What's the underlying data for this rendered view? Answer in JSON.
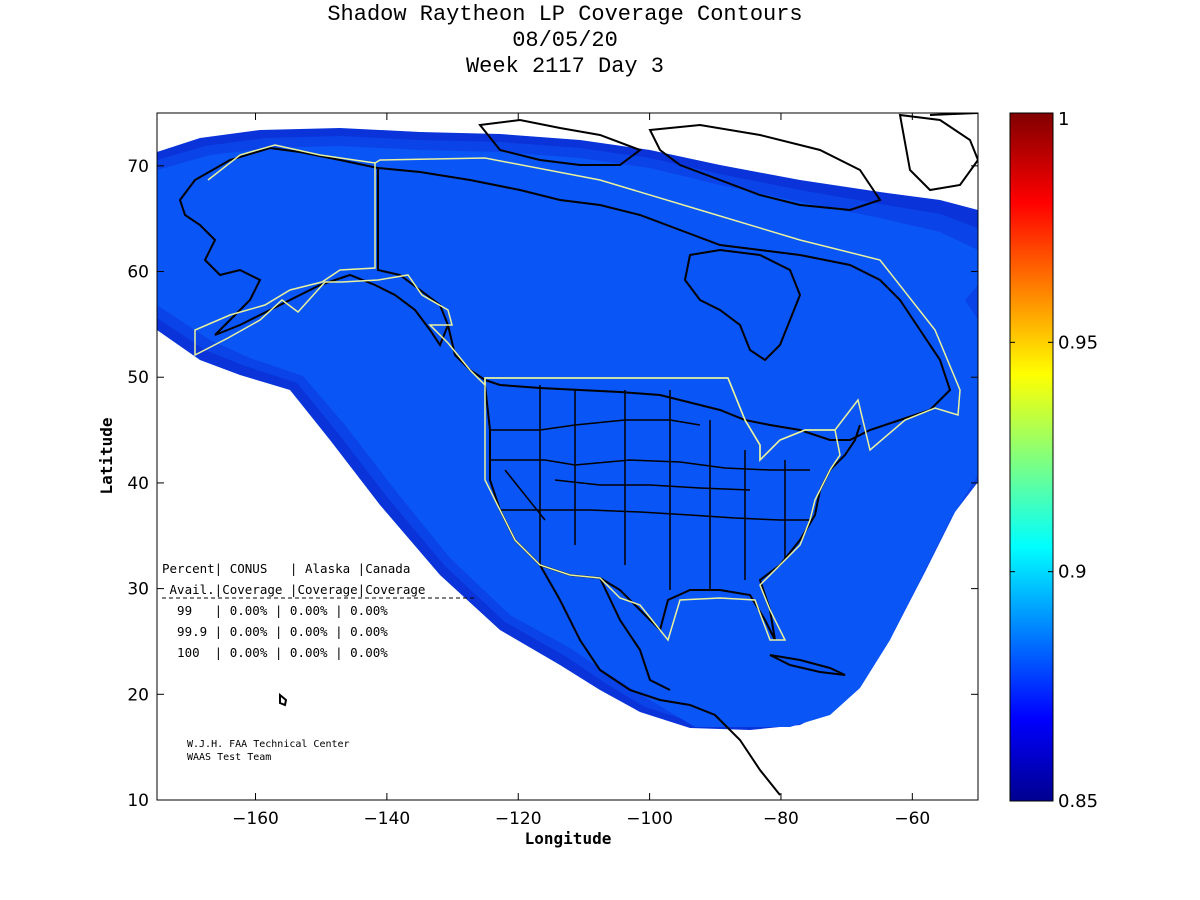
{
  "title": {
    "line1": "Shadow Raytheon LP Coverage Contours",
    "line2": "08/05/20",
    "line3": "Week 2117 Day 3"
  },
  "axes": {
    "xlabel": "Longitude",
    "ylabel": "Latitude",
    "xlim": [
      -175,
      -50
    ],
    "ylim": [
      10,
      75
    ],
    "xticks": [
      -160,
      -140,
      -120,
      -100,
      -80,
      -60
    ],
    "yticks": [
      10,
      20,
      30,
      40,
      50,
      60,
      70
    ]
  },
  "colorbar": {
    "range": [
      0.85,
      1
    ],
    "ticks": [
      {
        "value": 0.85,
        "label": "0.85"
      },
      {
        "value": 0.9,
        "label": "0.9"
      },
      {
        "value": 0.95,
        "label": "0.95"
      },
      {
        "value": 1,
        "label": "1"
      }
    ],
    "colormap": "jet"
  },
  "colors": {
    "ocean_fill": "#ffffff",
    "coverage_main": "#0a55f5",
    "coverage_edge_1": "#0a44e8",
    "coverage_edge_2": "#0a33d9",
    "coastline": "#000000",
    "region_outline": "#e8f2a0"
  },
  "stats_table": {
    "header1": "Percent| CONUS   | Alaska |Canada",
    "header2": " Avail.|Coverage |Coverage|Coverage",
    "rows": [
      "  99   | 0.00% | 0.00% | 0.00%",
      "  99.9 | 0.00% | 0.00% | 0.00%",
      "  100  | 0.00% | 0.00% | 0.00%"
    ]
  },
  "credit": {
    "line1": "W.J.H. FAA Technical Center",
    "line2": "WAAS Test Team"
  }
}
